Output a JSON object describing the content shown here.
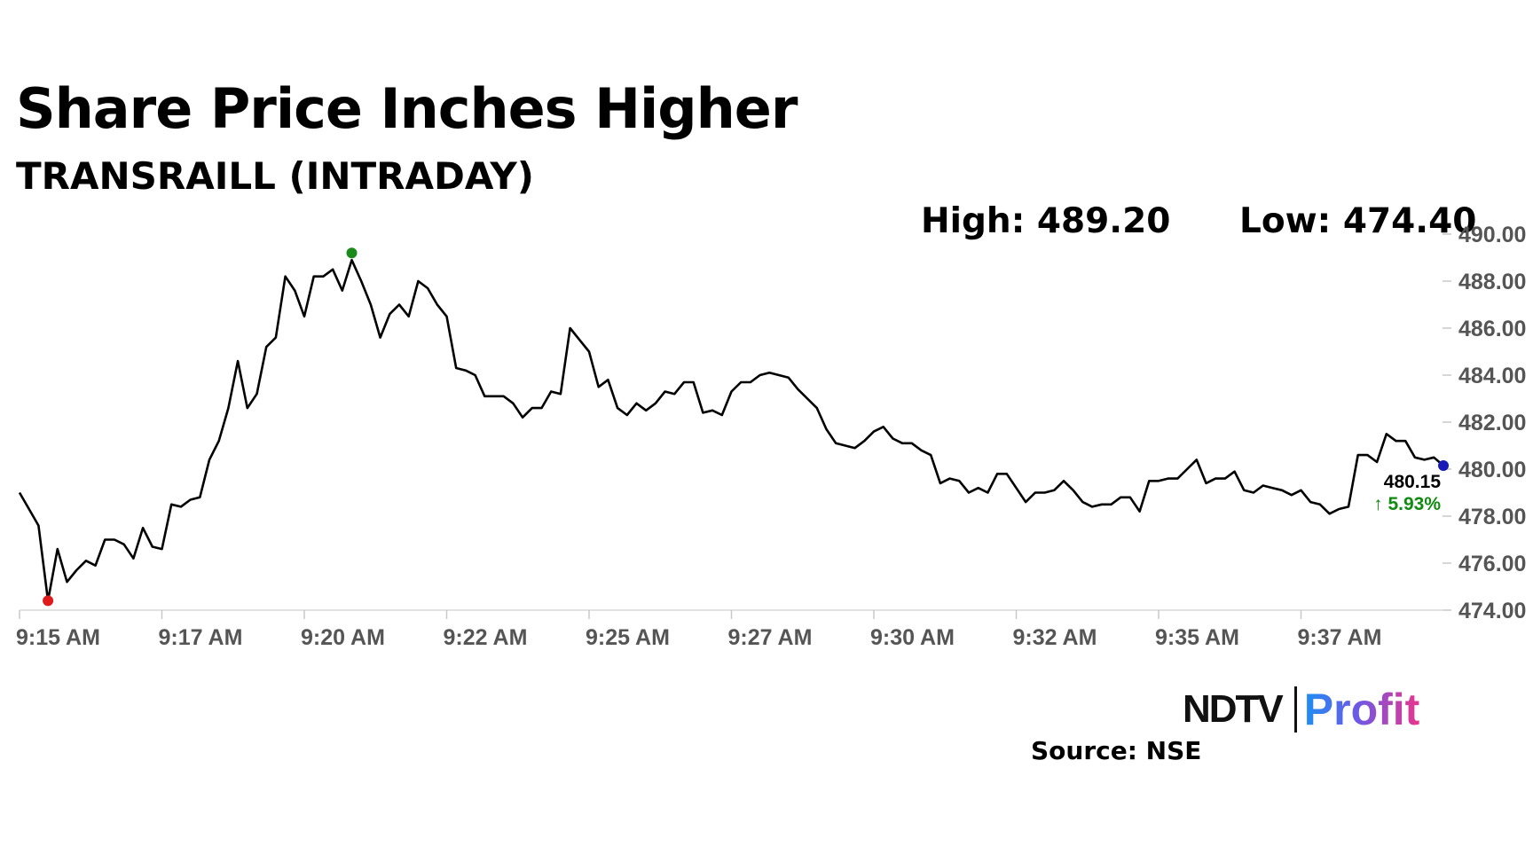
{
  "header": {
    "title": "Share Price Inches Higher",
    "subtitle": "TRANSRAILL (INTRADAY)"
  },
  "stats": {
    "high_label": "High: 489.20",
    "low_label": "Low: 474.40"
  },
  "last": {
    "price": "480.15",
    "change": "↑ 5.93%"
  },
  "branding": {
    "ndtv": "NDTV",
    "profit": "Profit"
  },
  "source": "Source: NSE",
  "colors": {
    "line": "#000000",
    "high_marker": "#1a8a1a",
    "low_marker": "#e01b1b",
    "last_marker": "#1a1ab8",
    "change_up": "#108a10"
  },
  "chart_data": {
    "type": "line",
    "title": "Share Price Inches Higher",
    "subtitle": "TRANSRAILL (INTRADAY)",
    "xlabel": "",
    "ylabel": "",
    "ylim": [
      474,
      490
    ],
    "yticks": [
      "474.00",
      "476.00",
      "478.00",
      "480.00",
      "482.00",
      "484.00",
      "486.00",
      "488.00",
      "490.00"
    ],
    "xticks": [
      "9:15 AM",
      "9:17 AM",
      "9:20 AM",
      "9:22 AM",
      "9:25 AM",
      "9:27 AM",
      "9:30 AM",
      "9:32 AM",
      "9:35 AM",
      "9:37 AM"
    ],
    "x_unit": "minutes after 9:15 AM",
    "x_range": [
      0,
      25
    ],
    "high": 489.2,
    "low": 474.4,
    "last": 480.15,
    "change_pct": 5.93,
    "grid": false,
    "series": [
      {
        "values": [
          479.0,
          478.3,
          477.6,
          474.4,
          476.6,
          475.2,
          475.7,
          476.1,
          475.9,
          477.0,
          477.0,
          476.8,
          476.2,
          477.5,
          476.7,
          476.6,
          478.5,
          478.4,
          478.7,
          478.8,
          480.4,
          481.2,
          482.6,
          484.6,
          482.6,
          483.2,
          485.2,
          485.6,
          488.2,
          487.6,
          486.5,
          488.2,
          488.2,
          488.5,
          487.6,
          488.9,
          488.0,
          487.0,
          485.6,
          486.6,
          487.0,
          486.5,
          488.0,
          487.7,
          487.0,
          486.5,
          484.3,
          484.2,
          484.0,
          483.1,
          483.1,
          483.1,
          482.8,
          482.2,
          482.6,
          482.6,
          483.3,
          483.2,
          486.0,
          485.5,
          485.0,
          483.5,
          483.8,
          482.6,
          482.3,
          482.8,
          482.5,
          482.8,
          483.3,
          483.2,
          483.7,
          483.7,
          482.4,
          482.5,
          482.3,
          483.3,
          483.7,
          483.7,
          484.0,
          484.1,
          484.0,
          483.9,
          483.4,
          483.0,
          482.6,
          481.7,
          481.1,
          481.0,
          480.9,
          481.2,
          481.6,
          481.8,
          481.3,
          481.1,
          481.1,
          480.8,
          480.6,
          479.4,
          479.6,
          479.5,
          479.0,
          479.2,
          479.0,
          479.8,
          479.8,
          479.2,
          478.6,
          479.0,
          479.0,
          479.1,
          479.5,
          479.1,
          478.6,
          478.4,
          478.5,
          478.5,
          478.8,
          478.8,
          478.2,
          479.5,
          479.5,
          479.6,
          479.6,
          480.0,
          480.4,
          479.4,
          479.6,
          479.6,
          479.9,
          479.1,
          479.0,
          479.3,
          479.2,
          479.1,
          478.9,
          479.1,
          478.6,
          478.5,
          478.1,
          478.3,
          478.4,
          480.6,
          480.6,
          480.3,
          481.5,
          481.2,
          481.2,
          480.5,
          480.4,
          480.5,
          480.15
        ]
      }
    ]
  }
}
